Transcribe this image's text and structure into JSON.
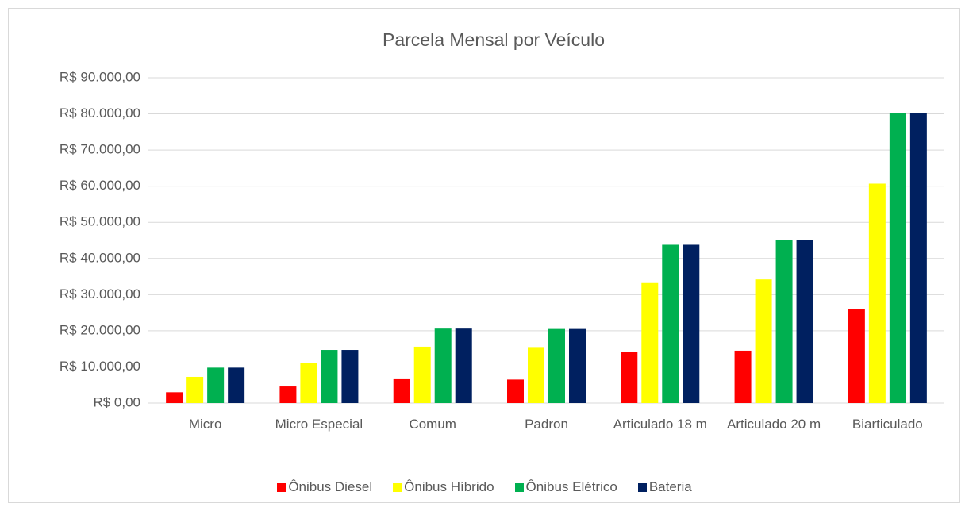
{
  "chart_data": {
    "type": "bar",
    "title": "Parcela Mensal por Veículo",
    "categories": [
      "Micro",
      "Micro Especial",
      "Comum",
      "Padron",
      "Articulado 18 m",
      "Articulado 20 m",
      "Biarticulado"
    ],
    "series": [
      {
        "name": "Ônibus Diesel",
        "color": "#ff0000",
        "values": [
          3000,
          4600,
          6600,
          6500,
          14100,
          14500,
          25900
        ]
      },
      {
        "name": "Ônibus Híbrido",
        "color": "#ffff00",
        "values": [
          7250,
          11000,
          15600,
          15500,
          33200,
          34200,
          60700
        ]
      },
      {
        "name": "Ônibus Elétrico",
        "color": "#00b050",
        "values": [
          9800,
          14700,
          20600,
          20500,
          43800,
          45200,
          80200
        ]
      },
      {
        "name": "Bateria",
        "color": "#002060",
        "values": [
          9800,
          14700,
          20600,
          20500,
          43800,
          45200,
          80200
        ]
      }
    ],
    "ylim": [
      0,
      90000
    ],
    "yticks": [
      {
        "value": 0,
        "label": "R$ 0,00"
      },
      {
        "value": 10000,
        "label": "R$ 10.000,00"
      },
      {
        "value": 20000,
        "label": "R$ 20.000,00"
      },
      {
        "value": 30000,
        "label": "R$ 30.000,00"
      },
      {
        "value": 40000,
        "label": "R$ 40.000,00"
      },
      {
        "value": 50000,
        "label": "R$ 50.000,00"
      },
      {
        "value": 60000,
        "label": "R$ 60.000,00"
      },
      {
        "value": 70000,
        "label": "R$ 70.000,00"
      },
      {
        "value": 80000,
        "label": "R$ 80.000,00"
      },
      {
        "value": 90000,
        "label": "R$ 90.000,00"
      }
    ],
    "grid": true,
    "legend": "bottom"
  }
}
